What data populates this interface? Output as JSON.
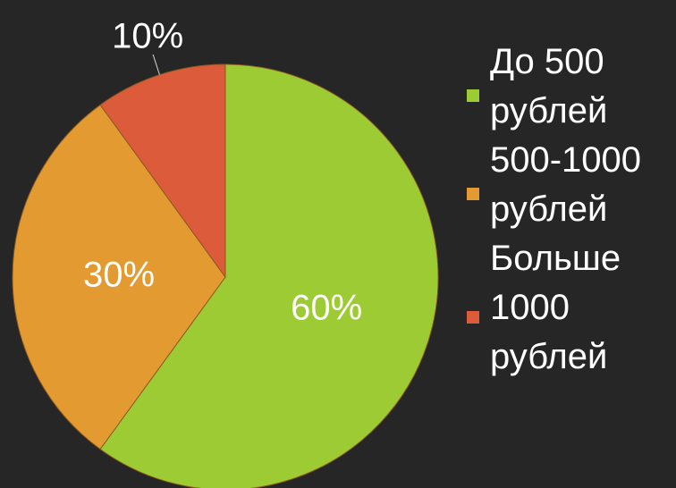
{
  "chart_data": {
    "type": "pie",
    "categories": [
      "До 500 рублей",
      "500-1000 рублей",
      "Больше 1000 рублей"
    ],
    "values": [
      60,
      30,
      10
    ],
    "value_labels": [
      "60%",
      "30%",
      "10%"
    ],
    "colors": [
      "#9dcb33",
      "#e39a31",
      "#db5b3b"
    ],
    "legend": "right"
  }
}
